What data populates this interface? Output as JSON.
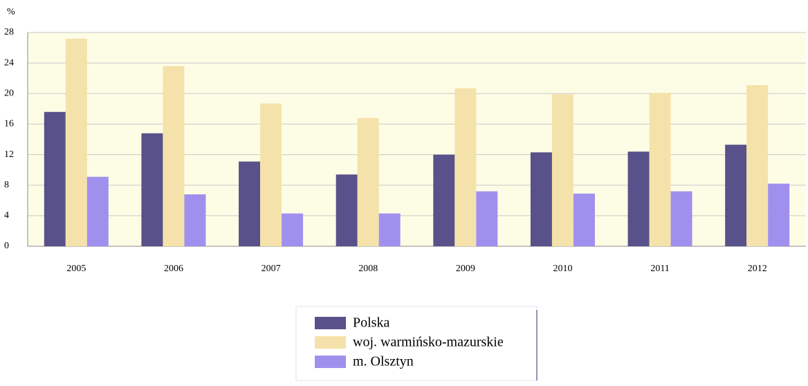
{
  "chart_data": {
    "type": "bar",
    "y_label": "%",
    "categories": [
      "2005",
      "2006",
      "2007",
      "2008",
      "2009",
      "2010",
      "2011",
      "2012"
    ],
    "series": [
      {
        "name": "Polska",
        "color": "#58518a",
        "values": [
          17.6,
          14.8,
          11.1,
          9.4,
          12.0,
          12.3,
          12.4,
          13.3
        ]
      },
      {
        "name": "woj. warmińsko-mazurskie",
        "color": "#f5e2aa",
        "values": [
          27.2,
          23.6,
          18.7,
          16.8,
          20.7,
          19.9,
          20.1,
          21.1
        ]
      },
      {
        "name": "m. Olsztyn",
        "color": "#a090ee",
        "values": [
          9.1,
          6.8,
          4.3,
          4.3,
          7.2,
          6.9,
          7.2,
          8.2
        ]
      }
    ],
    "ylim": [
      0,
      28
    ],
    "yticks": [
      0,
      4,
      8,
      12,
      16,
      20,
      24,
      28
    ],
    "grid": true
  }
}
